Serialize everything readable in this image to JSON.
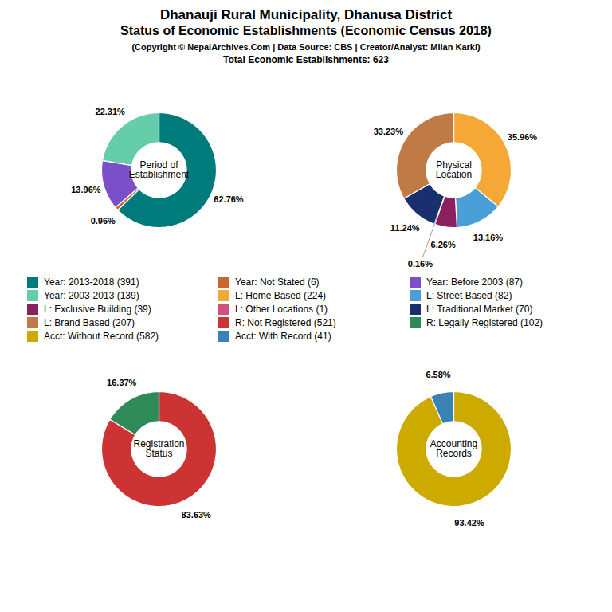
{
  "title": "Dhanauji Rural Municipality, Dhanusa District\nStatus of Economic Establishments (Economic Census 2018)",
  "subtitle": "(Copyright © NepalArchives.Com | Data Source: CBS | Creator/Analyst: Milan Karki)\nTotal Economic Establishments: 623",
  "chart_data": [
    {
      "type": "pie",
      "title": "Period of\nEstablishment",
      "categories": [
        "Year: 2013-2018 (391)",
        "Year: Not Stated (6)",
        "Year: Before 2003 (87)",
        "Year: 2003-2013 (139)"
      ],
      "values": [
        62.76,
        0.96,
        13.96,
        22.31
      ],
      "value_labels": [
        "62.76%",
        "0.96%",
        "13.96%",
        "22.31%"
      ],
      "colors": [
        "#007b7b",
        "#c96633",
        "#7b4fc9",
        "#66cdaa"
      ],
      "data_labels": true
    },
    {
      "type": "pie",
      "title": "Physical\nLocation",
      "categories": [
        "L: Home Based (224)",
        "L: Street Based (82)",
        "L: Exclusive Building (39)",
        "L: Other Locations (1)",
        "L: Traditional Market (70)",
        "L: Brand Based (207)"
      ],
      "values": [
        35.96,
        13.16,
        6.26,
        0.16,
        11.24,
        33.23
      ],
      "value_labels": [
        "35.96%",
        "13.16%",
        "6.26%",
        "0.16%",
        "11.24%",
        "33.23%"
      ],
      "colors": [
        "#f5a835",
        "#4a9fd9",
        "#8b2060",
        "#d05080",
        "#1a2f6e",
        "#c07a45"
      ],
      "data_labels": true
    },
    {
      "type": "pie",
      "title": "Registration\nStatus",
      "categories": [
        "R: Not Registered (521)",
        "R: Legally Registered (102)"
      ],
      "values": [
        83.63,
        16.37
      ],
      "value_labels": [
        "83.63%",
        "16.37%"
      ],
      "colors": [
        "#cc3333",
        "#2e8b57"
      ],
      "data_labels": true
    },
    {
      "type": "pie",
      "title": "Accounting\nRecords",
      "categories": [
        "Acct: Without Record (582)",
        "Acct: With Record (41)"
      ],
      "values": [
        93.42,
        6.58
      ],
      "value_labels": [
        "93.42%",
        "6.58%"
      ],
      "colors": [
        "#ccaa00",
        "#3a82b4"
      ],
      "data_labels": true
    }
  ]
}
